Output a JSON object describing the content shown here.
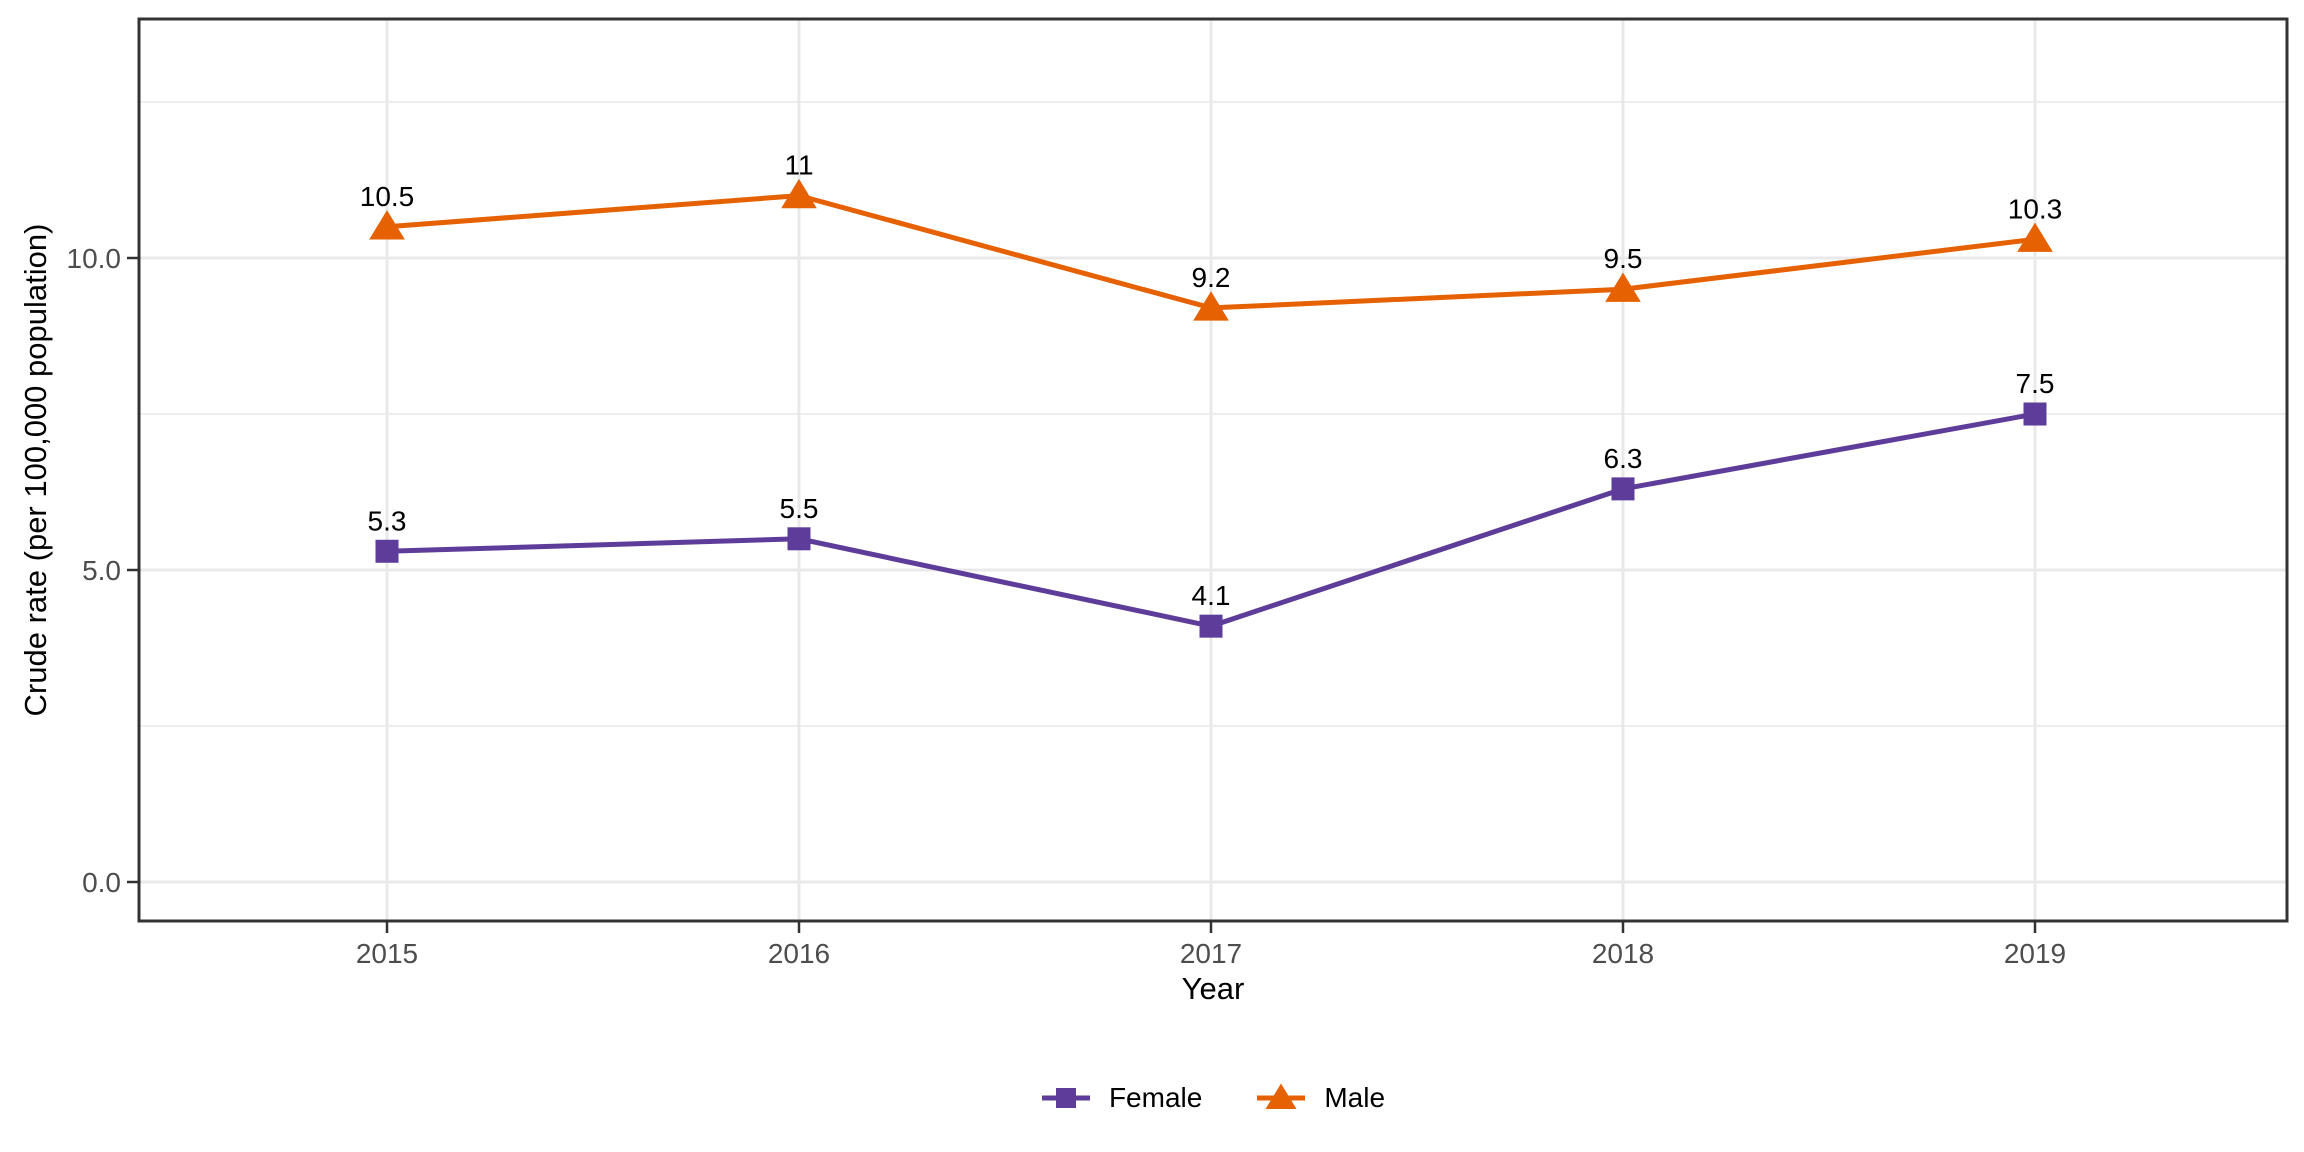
{
  "figure": {
    "background_color": "#ffffff",
    "panel_border_color": "#333333",
    "grid_color": "#e9e9e9",
    "tick_color": "#333333",
    "tick_label_color": "#4d4d4d",
    "text_color": "#000000"
  },
  "chart_data": {
    "type": "line",
    "title": "",
    "xlabel": "Year",
    "ylabel": "Crude rate (per 100,000 population)",
    "x": [
      2015,
      2016,
      2017,
      2018,
      2019
    ],
    "x_tick_labels": [
      "2015",
      "2016",
      "2017",
      "2018",
      "2019"
    ],
    "ylim": [
      -0.6,
      13.8
    ],
    "y_major_ticks": [
      0,
      5,
      10
    ],
    "y_tick_labels": [
      "0.0",
      "5.0",
      "10.0"
    ],
    "y_minor_ticks": [
      2.5,
      7.5,
      12.5
    ],
    "grid": "horizontal major+minor, vertical major only",
    "legend_position": "bottom-center",
    "point_labels_shown": true,
    "series": [
      {
        "name": "Female",
        "color": "#5e3c99",
        "marker": "square",
        "values": [
          5.3,
          5.5,
          4.1,
          6.3,
          7.5
        ],
        "labels": [
          "5.3",
          "5.5",
          "4.1",
          "6.3",
          "7.5"
        ]
      },
      {
        "name": "Male",
        "color": "#e66101",
        "marker": "triangle",
        "values": [
          10.5,
          11,
          9.2,
          9.5,
          10.3
        ],
        "labels": [
          "10.5",
          "11",
          "9.2",
          "9.5",
          "10.3"
        ]
      }
    ]
  }
}
